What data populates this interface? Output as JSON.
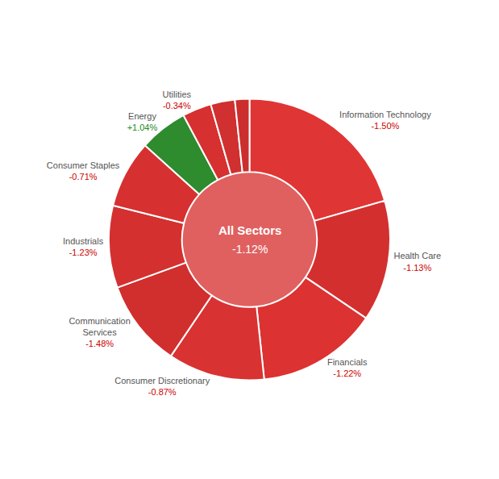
{
  "chart_data": {
    "type": "pie",
    "categories": [
      "Information Technology",
      "Health Care",
      "Financials",
      "Consumer Discretionary",
      "Communication\nServices",
      "Industrials",
      "Consumer Staples",
      "Energy",
      "Utilities",
      null,
      null
    ],
    "values": [
      18.5,
      12.5,
      12.5,
      10.0,
      9.0,
      8.5,
      7.0,
      5.0,
      3.0,
      2.5,
      1.5
    ],
    "colors": [
      "#e03535",
      "#d42f2f",
      "#dc3232",
      "#d93232",
      "#d12e2e",
      "#d43030",
      "#d63030",
      "#2e8b2e",
      "#d63030",
      "#d03030",
      "#cc2e2e"
    ],
    "changes": [
      -1.5,
      -1.13,
      -1.22,
      -0.87,
      -1.48,
      -1.23,
      -0.71,
      1.04,
      -0.34,
      null,
      null
    ],
    "change_labels": [
      "-1.50%",
      "-1.13%",
      "-1.22%",
      "-0.87%",
      "-1.48%",
      "-1.23%",
      "-0.71%",
      "+1.04%",
      "-0.34%",
      null,
      null
    ],
    "gain_color": "#228b22",
    "loss_color": "#cc0000",
    "name_color": "#555555",
    "edge_color": "#ffffff",
    "center_label": "All Sectors",
    "center_value": "-1.12%",
    "center_color": "#e06060"
  }
}
